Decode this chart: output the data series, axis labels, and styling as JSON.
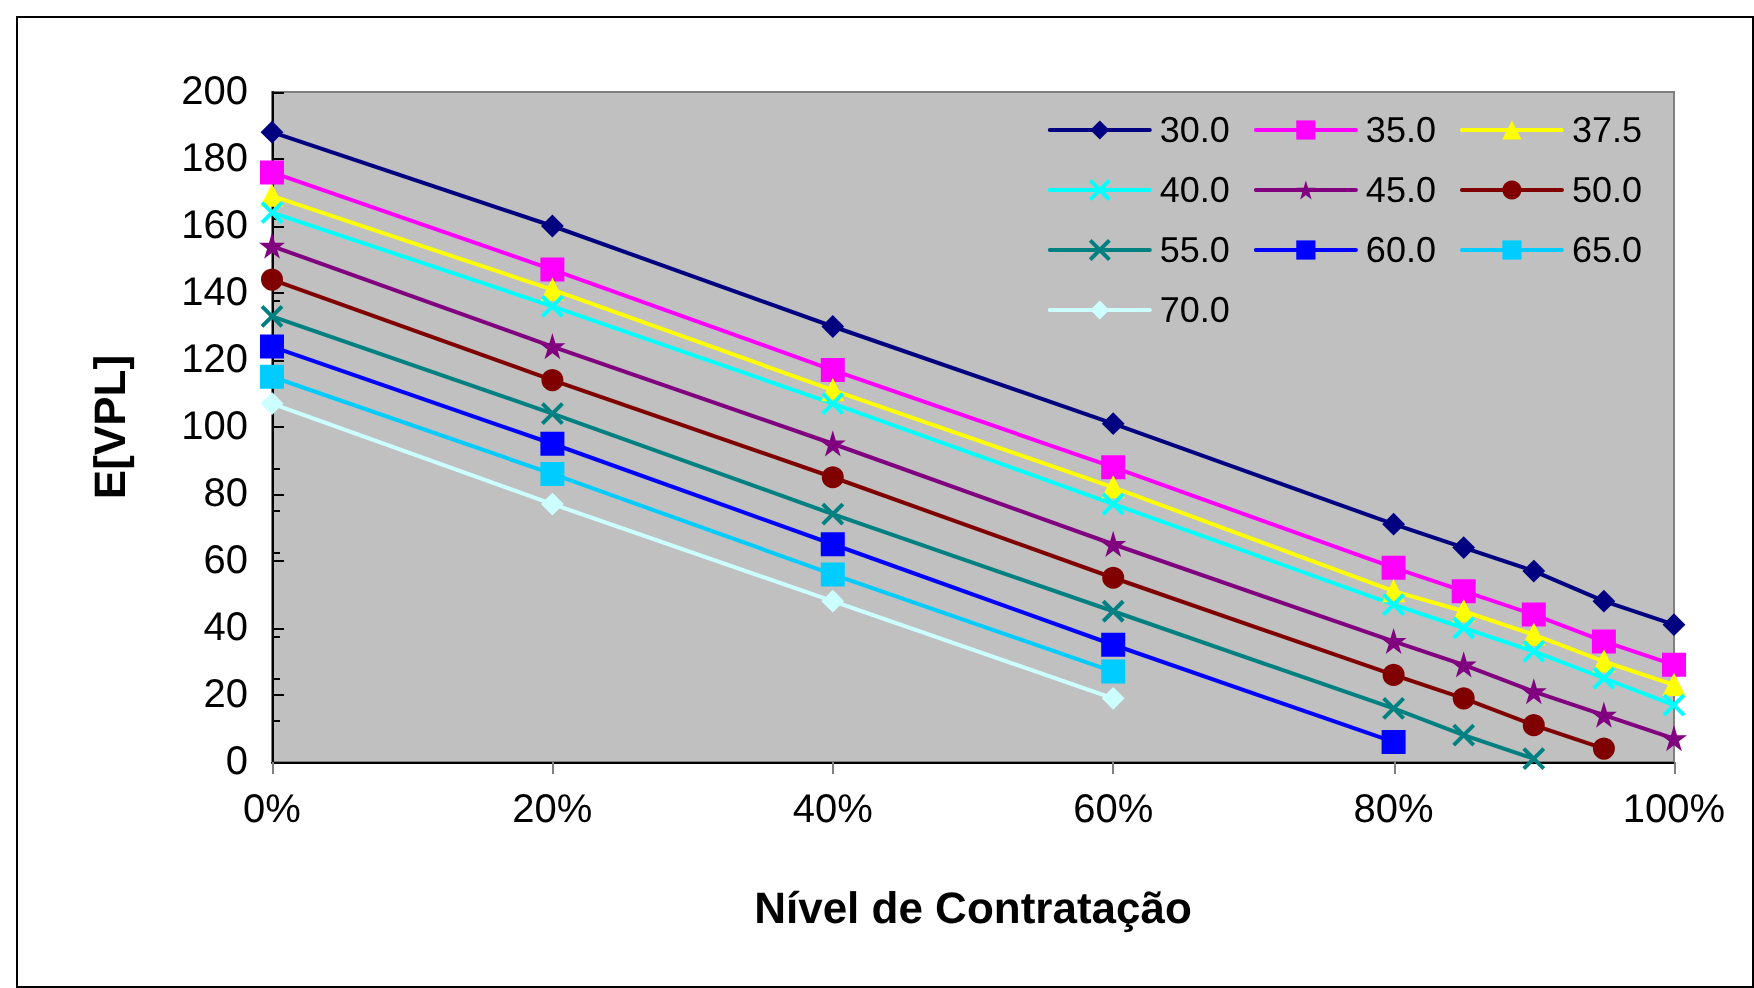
{
  "chart_data": {
    "type": "line",
    "xlabel": "Nível de Contratação",
    "ylabel": "E[VPL]",
    "x": [
      0,
      20,
      40,
      60,
      80,
      85,
      90,
      95,
      100
    ],
    "series": [
      {
        "name": "30.0",
        "color": "#000080",
        "marker": "diamond",
        "values": [
          188,
          160,
          130,
          101,
          71,
          64,
          57,
          48,
          41
        ]
      },
      {
        "name": "35.0",
        "color": "#ff00ff",
        "marker": "square",
        "values": [
          176,
          147,
          117,
          88,
          58,
          51,
          44,
          36,
          29
        ]
      },
      {
        "name": "37.5",
        "color": "#ffff00",
        "marker": "triangle",
        "values": [
          169,
          141,
          111,
          82,
          51,
          45,
          38,
          30,
          23
        ]
      },
      {
        "name": "40.0",
        "color": "#00ffff",
        "marker": "cross",
        "values": [
          164,
          136,
          107,
          77,
          47,
          40,
          33,
          25,
          17
        ]
      },
      {
        "name": "45.0",
        "color": "#800080",
        "marker": "star",
        "values": [
          154,
          124,
          95,
          65,
          36,
          29,
          21,
          14,
          7
        ]
      },
      {
        "name": "50.0",
        "color": "#800000",
        "marker": "circle",
        "values": [
          144,
          114,
          85,
          55,
          26,
          19,
          11,
          4,
          null
        ]
      },
      {
        "name": "55.0",
        "color": "#008080",
        "marker": "cross",
        "values": [
          133,
          104,
          74,
          45,
          16,
          8,
          1,
          null,
          null
        ]
      },
      {
        "name": "60.0",
        "color": "#0000ff",
        "marker": "square",
        "values": [
          124,
          95,
          65,
          35,
          6,
          null,
          null,
          null,
          null
        ]
      },
      {
        "name": "65.0",
        "color": "#00ccff",
        "marker": "square",
        "values": [
          115,
          86,
          56,
          27,
          null,
          null,
          null,
          null,
          null
        ]
      },
      {
        "name": "70.0",
        "color": "#ccffff",
        "marker": "diamond",
        "values": [
          107,
          77,
          48,
          19,
          null,
          null,
          null,
          null,
          null
        ]
      }
    ],
    "xlim": [
      0,
      100
    ],
    "xticks": [
      {
        "value": 0,
        "label": "0%"
      },
      {
        "value": 20,
        "label": "20%"
      },
      {
        "value": 40,
        "label": "40%"
      },
      {
        "value": 60,
        "label": "60%"
      },
      {
        "value": 80,
        "label": "80%"
      },
      {
        "value": 100,
        "label": "100%"
      }
    ],
    "ylim": [
      0,
      200
    ],
    "yticks": [
      0,
      20,
      40,
      60,
      80,
      100,
      120,
      140,
      160,
      180,
      200
    ],
    "grid": false,
    "legend": "top right",
    "line_style": "solid"
  }
}
